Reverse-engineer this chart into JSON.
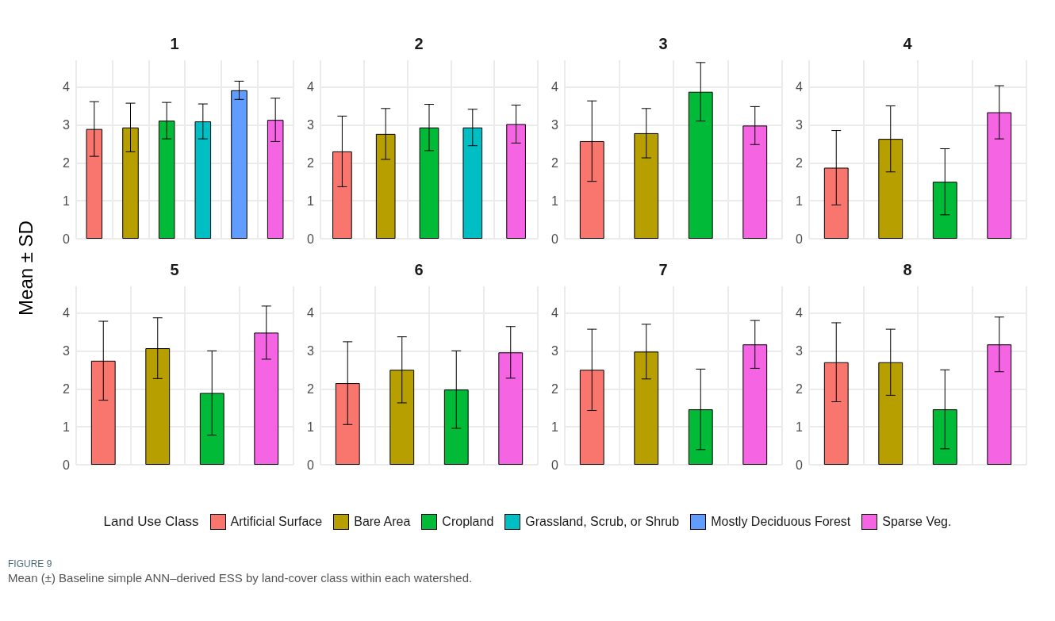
{
  "chart_data": [
    {
      "type": "bar",
      "title": "1",
      "ylabel": "Mean ± SD",
      "legend_title": "Land Use Class",
      "legend": "bottom",
      "grid": true,
      "stacked": true,
      "ylim": [
        0,
        4.7
      ],
      "yticks": [
        0,
        1,
        2,
        3,
        4
      ],
      "annotations": [
        "FIGURE 9",
        "Mean (±) Baseline simple ANN–derived ESS by land-cover class within each watershed."
      ],
      "categories": [
        null,
        null,
        null,
        null,
        null,
        null
      ],
      "series": [
        {
          "name": "Artificial Surface",
          "color": "#f8766d",
          "values": [
            2.89,
            null,
            null,
            null,
            null,
            null
          ],
          "errors": [
            0.72,
            null,
            null,
            null,
            null,
            null
          ]
        },
        {
          "name": "Bare Area",
          "color": "#b79f00",
          "values": [
            null,
            2.93,
            null,
            null,
            null,
            null
          ],
          "errors": [
            null,
            0.64,
            null,
            null,
            null,
            null
          ]
        },
        {
          "name": "Cropland",
          "color": "#00ba38",
          "values": [
            null,
            null,
            3.11,
            null,
            null,
            null
          ],
          "errors": [
            null,
            null,
            0.48,
            null,
            null,
            null
          ]
        },
        {
          "name": "Grassland, Scrub, or Shrub",
          "color": "#00bfc4",
          "values": [
            null,
            null,
            null,
            3.09,
            null,
            null
          ],
          "errors": [
            null,
            null,
            null,
            0.46,
            null,
            null
          ]
        },
        {
          "name": "Mostly Deciduous Forest",
          "color": "#619cff",
          "values": [
            null,
            null,
            null,
            null,
            3.91,
            null
          ],
          "errors": [
            null,
            null,
            null,
            null,
            0.24,
            null
          ]
        },
        {
          "name": "Sparse Veg.",
          "color": "#f564e3",
          "values": [
            null,
            null,
            null,
            null,
            null,
            3.13
          ],
          "errors": [
            null,
            null,
            null,
            null,
            null,
            0.57
          ]
        }
      ]
    },
    {
      "type": "bar",
      "title": "2",
      "grid": true,
      "ylim": [
        0,
        4.7
      ],
      "yticks": [
        0,
        1,
        2,
        3,
        4
      ],
      "categories": [
        null,
        null,
        null,
        null,
        null
      ],
      "values": [
        2.3,
        2.76,
        2.93,
        2.93,
        3.02
      ],
      "errors": [
        0.93,
        0.67,
        0.61,
        0.48,
        0.5
      ],
      "colors": [
        "#f8766d",
        "#b79f00",
        "#00ba38",
        "#00bfc4",
        "#f564e3"
      ]
    },
    {
      "type": "bar",
      "title": "3",
      "grid": true,
      "ylim": [
        0,
        4.7
      ],
      "yticks": [
        0,
        1,
        2,
        3,
        4
      ],
      "categories": [
        null,
        null,
        null,
        null
      ],
      "values": [
        2.57,
        2.78,
        3.87,
        2.98
      ],
      "errors": [
        1.06,
        0.65,
        0.77,
        0.5
      ],
      "colors": [
        "#f8766d",
        "#b79f00",
        "#00ba38",
        "#f564e3"
      ]
    },
    {
      "type": "bar",
      "title": "4",
      "grid": true,
      "ylim": [
        0,
        4.7
      ],
      "yticks": [
        0,
        1,
        2,
        3,
        4
      ],
      "categories": [
        null,
        null,
        null,
        null
      ],
      "values": [
        1.87,
        2.63,
        1.5,
        3.33
      ],
      "errors": [
        0.98,
        0.87,
        0.87,
        0.7
      ],
      "colors": [
        "#f8766d",
        "#b79f00",
        "#00ba38",
        "#f564e3"
      ]
    },
    {
      "type": "bar",
      "title": "5",
      "grid": true,
      "ylim": [
        0,
        4.7
      ],
      "yticks": [
        0,
        1,
        2,
        3,
        4
      ],
      "categories": [
        null,
        null,
        null,
        null
      ],
      "values": [
        2.74,
        3.07,
        1.89,
        3.48
      ],
      "errors": [
        1.04,
        0.8,
        1.11,
        0.7
      ],
      "colors": [
        "#f8766d",
        "#b79f00",
        "#00ba38",
        "#f564e3"
      ]
    },
    {
      "type": "bar",
      "title": "6",
      "grid": true,
      "ylim": [
        0,
        4.7
      ],
      "yticks": [
        0,
        1,
        2,
        3,
        4
      ],
      "categories": [
        null,
        null,
        null,
        null
      ],
      "values": [
        2.15,
        2.5,
        1.98,
        2.96
      ],
      "errors": [
        1.09,
        0.87,
        1.02,
        0.68
      ],
      "colors": [
        "#f8766d",
        "#b79f00",
        "#00ba38",
        "#f564e3"
      ]
    },
    {
      "type": "bar",
      "title": "7",
      "grid": true,
      "ylim": [
        0,
        4.7
      ],
      "yticks": [
        0,
        1,
        2,
        3,
        4
      ],
      "categories": [
        null,
        null,
        null,
        null
      ],
      "values": [
        2.5,
        2.98,
        1.46,
        3.17
      ],
      "errors": [
        1.07,
        0.72,
        1.06,
        0.63
      ],
      "colors": [
        "#f8766d",
        "#b79f00",
        "#00ba38",
        "#f564e3"
      ]
    },
    {
      "type": "bar",
      "title": "8",
      "grid": true,
      "ylim": [
        0,
        4.7
      ],
      "yticks": [
        0,
        1,
        2,
        3,
        4
      ],
      "categories": [
        null,
        null,
        null,
        null
      ],
      "values": [
        2.7,
        2.7,
        1.46,
        3.17
      ],
      "errors": [
        1.04,
        0.87,
        1.04,
        0.72
      ],
      "colors": [
        "#f8766d",
        "#b79f00",
        "#00ba38",
        "#f564e3"
      ]
    }
  ]
}
